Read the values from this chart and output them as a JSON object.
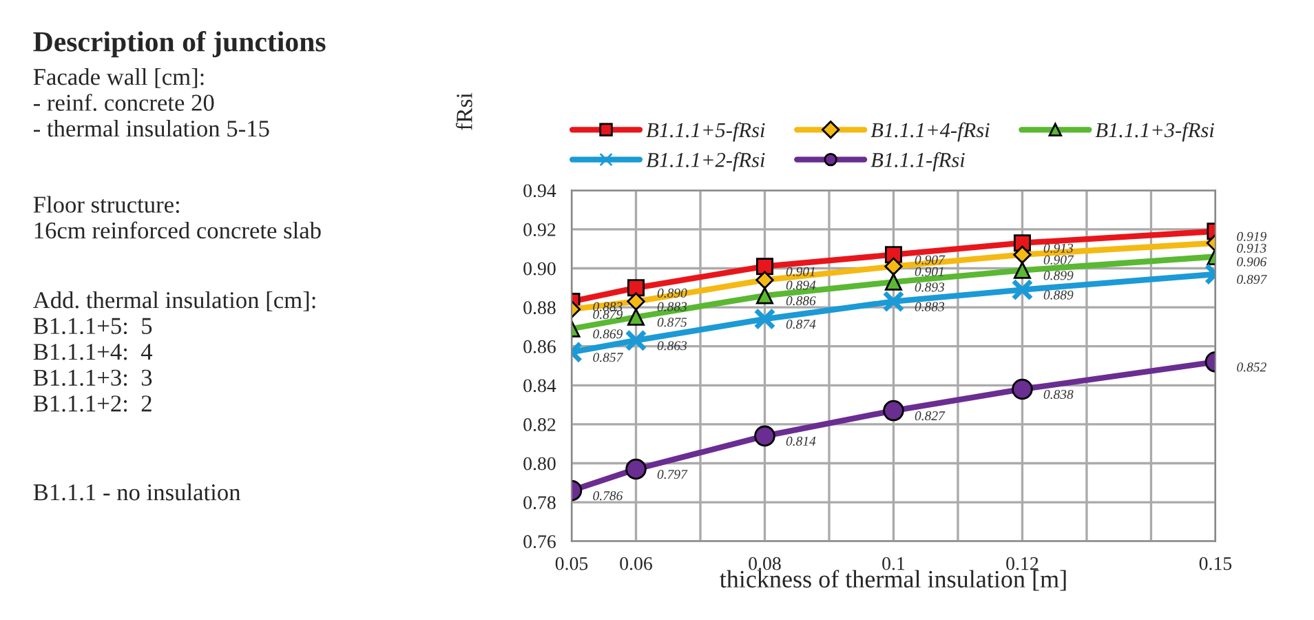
{
  "chart_data": {
    "type": "line",
    "annotations": [
      "Description of junctions",
      "Facade wall [cm]:\n- reinf. concrete 20\n- thermal insulation 5-15",
      "Floor structure:\n16cm reinforced concrete slab",
      "Add. thermal insulation [cm]:\nB1.1.1+5:  5\nB1.1.1+4:  4\nB1.1.1+3:  3\nB1.1.1+2:  2",
      "B1.1.1 - no insulation"
    ],
    "xlabel": "thickness of thermal insulation [m]",
    "ylabel": "fRsi",
    "x": [
      0.05,
      0.06,
      0.08,
      0.1,
      0.12,
      0.15
    ],
    "series": [
      {
        "name": "B1.1.1+5-fRsi",
        "color": "#e8161b",
        "marker": "square",
        "values": [
          0.883,
          0.89,
          0.901,
          0.907,
          0.913,
          0.919
        ],
        "value_labels": [
          "0.883",
          "0.890",
          "0.901",
          "0.907",
          "0.913",
          "0.919"
        ]
      },
      {
        "name": "B1.1.1+4-fRsi",
        "color": "#f5b914",
        "marker": "diamond",
        "values": [
          0.879,
          0.883,
          0.894,
          0.901,
          0.907,
          0.913
        ],
        "value_labels": [
          "0.879",
          "0.883",
          "0.894",
          "0.901",
          "0.907",
          "0.913"
        ]
      },
      {
        "name": "B1.1.1+3-fRsi",
        "color": "#5ab832",
        "marker": "triangle",
        "values": [
          0.869,
          0.875,
          0.886,
          0.893,
          0.899,
          0.906
        ],
        "value_labels": [
          "0.869",
          "0.875",
          "0.886",
          "0.893",
          "0.899",
          "0.906"
        ]
      },
      {
        "name": "B1.1.1+2-fRsi",
        "color": "#1b9ad6",
        "marker": "cross",
        "values": [
          0.857,
          0.863,
          0.874,
          0.883,
          0.889,
          0.897
        ],
        "value_labels": [
          "0.857",
          "0.863",
          "0.874",
          "0.883",
          "0.889",
          "0.897"
        ]
      },
      {
        "name": "B1.1.1-fRsi",
        "color": "#6a2d91",
        "marker": "circle",
        "values": [
          0.786,
          0.797,
          0.814,
          0.827,
          0.838,
          0.852
        ],
        "value_labels": [
          "0.786",
          "0.797",
          "0.814",
          "0.827",
          "0.838",
          "0.852"
        ]
      }
    ],
    "xlim": [
      0.05,
      0.15
    ],
    "xticks": [
      0.05,
      0.06,
      {
        "value": 0.07,
        "label": null
      },
      0.08,
      {
        "value": 0.09,
        "label": null
      },
      0.1,
      {
        "value": 0.11,
        "label": null
      },
      0.12,
      {
        "value": 0.13,
        "label": null
      },
      {
        "value": 0.14,
        "label": null
      },
      0.15
    ],
    "ylim": [
      0.76,
      0.94
    ],
    "yticks": [
      0.76,
      0.78,
      {
        "value": 0.8,
        "label": "0.80"
      },
      0.82,
      0.84,
      0.86,
      0.88,
      {
        "value": 0.9,
        "label": "0.90"
      },
      0.92,
      0.94
    ],
    "grid": true,
    "legend": "top",
    "line_style": "solid"
  }
}
